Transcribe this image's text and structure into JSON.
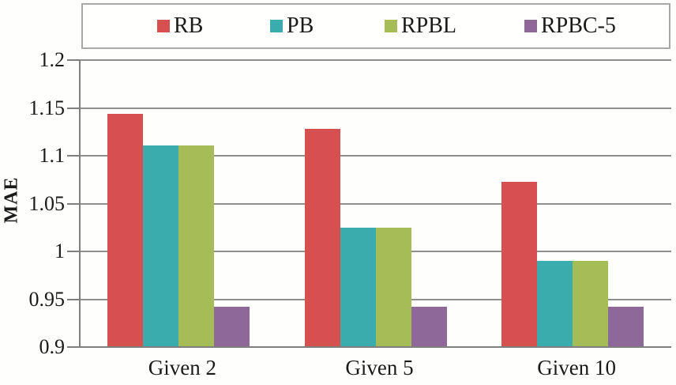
{
  "figure": {
    "background": "#fefefd"
  },
  "chart_data": {
    "type": "bar",
    "title": "",
    "xlabel": "",
    "ylabel": "MAE",
    "categories": [
      "Given 2",
      "Given 5",
      "Given 10"
    ],
    "series": [
      {
        "name": "RB",
        "color": "#d5504e",
        "values": [
          1.144,
          1.128,
          1.073
        ]
      },
      {
        "name": "PB",
        "color": "#3aacae",
        "values": [
          1.111,
          1.025,
          0.99
        ]
      },
      {
        "name": "RPBL",
        "color": "#a6bc57",
        "values": [
          1.111,
          1.025,
          0.99
        ]
      },
      {
        "name": "RPBC-5",
        "color": "#8f689a",
        "values": [
          0.942,
          0.942,
          0.942
        ]
      }
    ],
    "ylim": [
      0.9,
      1.2
    ],
    "ytick_step": 0.05,
    "ytick_labels": [
      "0.9",
      "0.95",
      "1",
      "1.05",
      "1.1",
      "1.15",
      "1.2"
    ],
    "grid": true,
    "legend_position": "top"
  },
  "colors": {
    "grid": "#8e8e8e",
    "axis": "#7f7f7f",
    "legend_border": "#a8a8a8",
    "text": "#1a1a1a"
  }
}
